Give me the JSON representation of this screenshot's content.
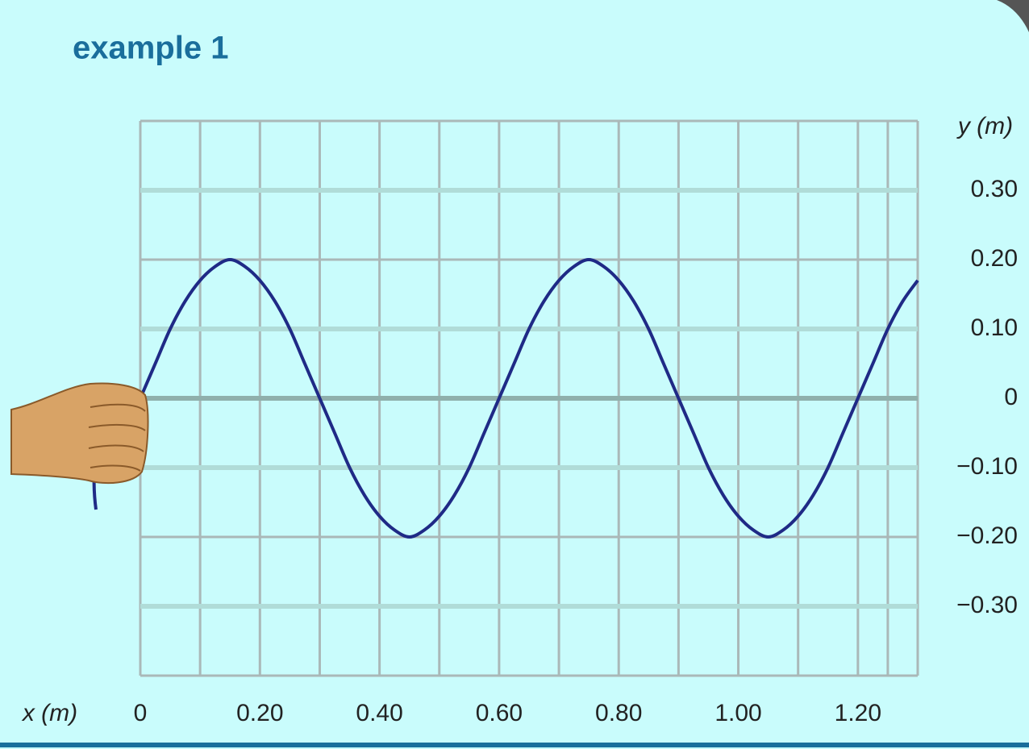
{
  "chart_data": {
    "type": "line",
    "title": "example 1",
    "xlabel": "x (m)",
    "ylabel": "y (m)",
    "x": [
      0,
      0.025,
      0.05,
      0.075,
      0.1,
      0.125,
      0.15,
      0.175,
      0.2,
      0.225,
      0.25,
      0.275,
      0.3,
      0.325,
      0.35,
      0.375,
      0.4,
      0.425,
      0.45,
      0.475,
      0.5,
      0.525,
      0.55,
      0.575,
      0.6,
      0.625,
      0.65,
      0.675,
      0.7,
      0.725,
      0.75,
      0.775,
      0.8,
      0.825,
      0.85,
      0.875,
      0.9,
      0.925,
      0.95,
      0.975,
      1,
      1.025,
      1.05,
      1.075,
      1.1,
      1.125,
      1.15,
      1.175,
      1.2,
      1.225,
      1.25,
      1.275,
      1.3
    ],
    "values": [
      0,
      0.05,
      0.1,
      0.14,
      0.17,
      0.19,
      0.2,
      0.19,
      0.17,
      0.14,
      0.1,
      0.05,
      0,
      -0.05,
      -0.1,
      -0.14,
      -0.17,
      -0.19,
      -0.2,
      -0.19,
      -0.17,
      -0.14,
      -0.1,
      -0.05,
      0,
      0.05,
      0.1,
      0.14,
      0.17,
      0.19,
      0.2,
      0.19,
      0.17,
      0.14,
      0.1,
      0.05,
      0,
      -0.05,
      -0.1,
      -0.14,
      -0.17,
      -0.19,
      -0.2,
      -0.19,
      -0.17,
      -0.14,
      -0.1,
      -0.05,
      0,
      0.05,
      0.1,
      0.14,
      0.17
    ],
    "color": "#1f2a86",
    "xlim": [
      0,
      1.3
    ],
    "xticks": [
      0,
      {
        "value": 0.2,
        "label": "0.20"
      },
      {
        "value": 0.4,
        "label": "0.40"
      },
      {
        "value": 0.6,
        "label": "0.60"
      },
      {
        "value": 0.8,
        "label": "0.80"
      },
      {
        "value": 1,
        "label": "1.00"
      },
      {
        "value": 1.2,
        "label": "1.20"
      }
    ],
    "ylim": [
      -0.4,
      0.4
    ],
    "yticks": [
      {
        "value": 0.3,
        "label": "0.30"
      },
      {
        "value": 0.2,
        "label": "0.20"
      },
      {
        "value": 0.1,
        "label": "0.10"
      },
      0,
      {
        "value": -0.1,
        "label": "−0.10"
      },
      {
        "value": -0.2,
        "label": "−0.20"
      },
      {
        "value": -0.3,
        "label": "−0.30"
      }
    ],
    "grid": true
  }
}
